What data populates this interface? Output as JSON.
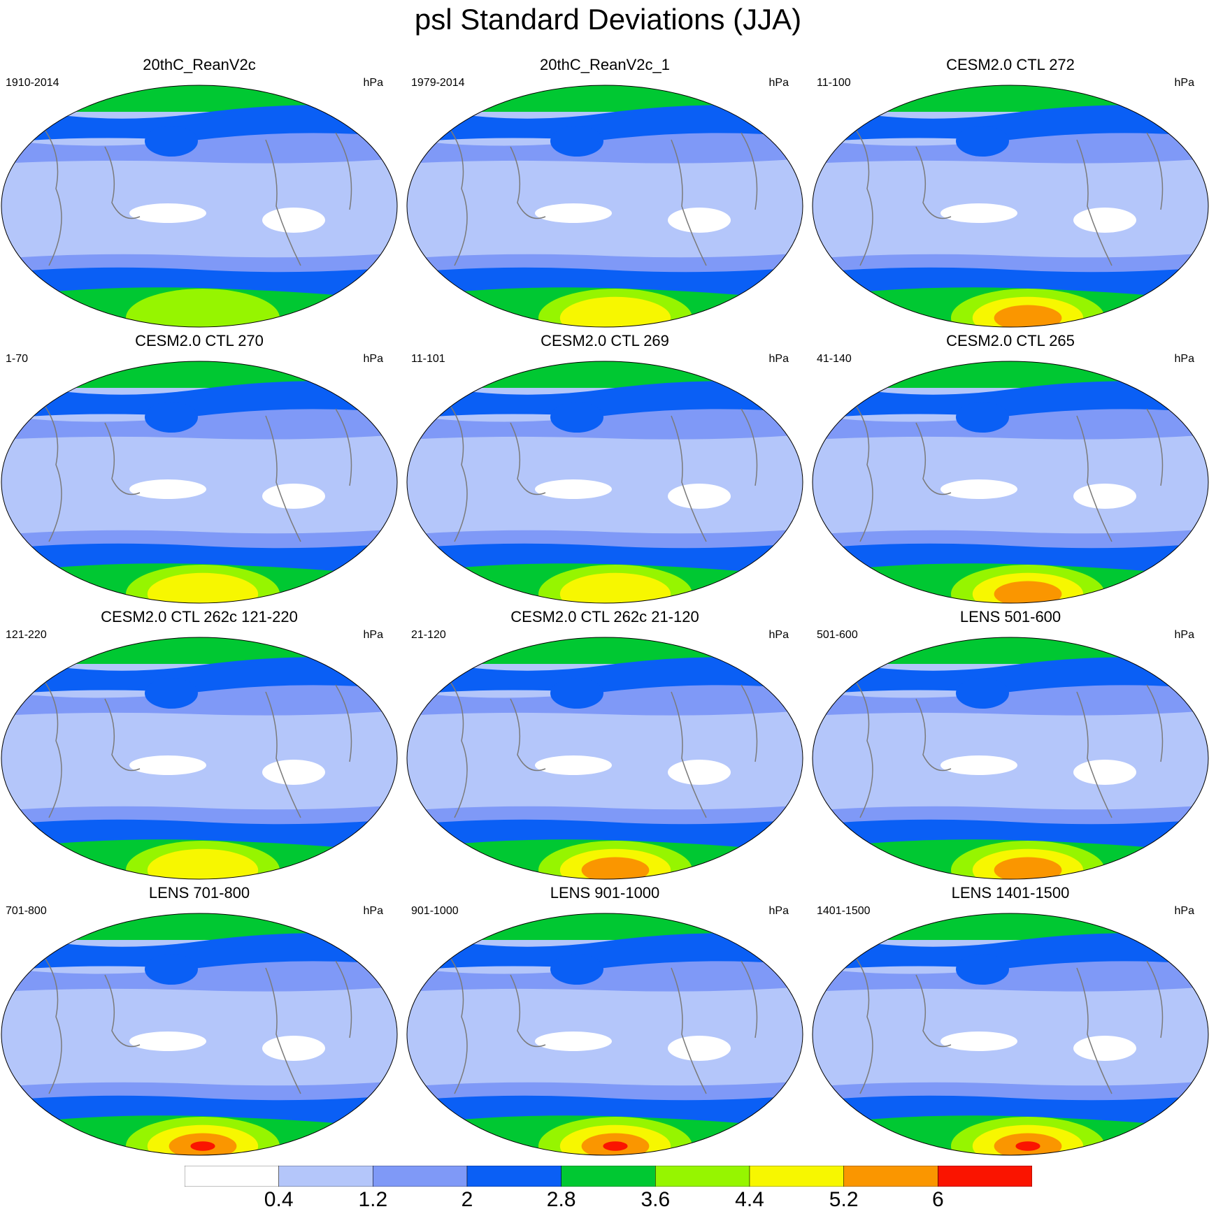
{
  "title": "psl Standard Deviations (JJA)",
  "unit": "hPa",
  "panels": [
    {
      "title": "20thC_ReanV2c",
      "years": "1910-2014"
    },
    {
      "title": "20thC_ReanV2c_1",
      "years": "1979-2014"
    },
    {
      "title": "CESM2.0 CTL 272",
      "years": "11-100"
    },
    {
      "title": "CESM2.0 CTL 270",
      "years": "1-70"
    },
    {
      "title": "CESM2.0 CTL 269",
      "years": "11-101"
    },
    {
      "title": "CESM2.0 CTL 265",
      "years": "41-140"
    },
    {
      "title": "CESM2.0 CTL 262c 121-220",
      "years": "121-220"
    },
    {
      "title": "CESM2.0 CTL 262c 21-120",
      "years": "21-120"
    },
    {
      "title": "LENS 501-600",
      "years": "501-600"
    },
    {
      "title": "LENS 701-800",
      "years": "701-800"
    },
    {
      "title": "LENS 901-1000",
      "years": "901-1000"
    },
    {
      "title": "LENS 1401-1500",
      "years": "1401-1500"
    }
  ],
  "colorbar": {
    "levels": [
      "0.4",
      "1.2",
      "2",
      "2.8",
      "3.6",
      "4.4",
      "5.2",
      "6"
    ],
    "colors": [
      "#ffffff",
      "#b4c6fa",
      "#7f99f7",
      "#0a5ff5",
      "#00c832",
      "#96f500",
      "#f7f700",
      "#fa9600",
      "#fa1400"
    ]
  },
  "colors": {
    "coastline": "#7a7a7a",
    "map_border": "#000000"
  }
}
